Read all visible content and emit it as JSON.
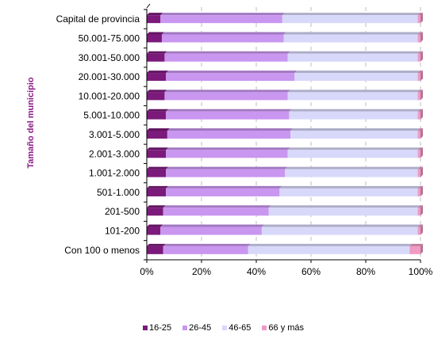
{
  "chart_data": {
    "type": "bar",
    "orientation": "horizontal",
    "stacked": "percent",
    "ylabel": "Tamaño del municipio",
    "xlim": [
      0,
      100
    ],
    "x_ticks": [
      "0%",
      "20%",
      "40%",
      "60%",
      "80%",
      "100%"
    ],
    "grid": true,
    "legend_position": "bottom",
    "categories": [
      "Capital de provincia",
      "50.001-75.000",
      "30.001-50.000",
      "20.001-30.000",
      "10.001-20.000",
      "5.001-10.000",
      "3.001-5.000",
      "2.001-3.000",
      "1.001-2.000",
      "501-1.000",
      "201-500",
      "101-200",
      "Con 100 o menos"
    ],
    "series": [
      {
        "name": "16-25",
        "color": "#7B1A7B",
        "values": [
          5,
          5.5,
          6.5,
          7,
          6.5,
          7,
          7.5,
          7,
          7,
          7,
          6,
          5,
          6
        ]
      },
      {
        "name": "26-45",
        "color": "#C996F0",
        "values": [
          44.5,
          44.5,
          45,
          47,
          45,
          45,
          45,
          44.5,
          43.5,
          41.5,
          38.5,
          37,
          31
        ]
      },
      {
        "name": "46-65",
        "color": "#D8D8FA",
        "values": [
          49.5,
          49,
          47.5,
          45,
          47.5,
          47,
          46.5,
          47.5,
          48.5,
          50.5,
          54.5,
          57,
          59
        ]
      },
      {
        "name": "66 y más",
        "color": "#F09AC4",
        "values": [
          1,
          1,
          1,
          1,
          1,
          1,
          1,
          1,
          1,
          1,
          1,
          1,
          4
        ]
      }
    ]
  }
}
